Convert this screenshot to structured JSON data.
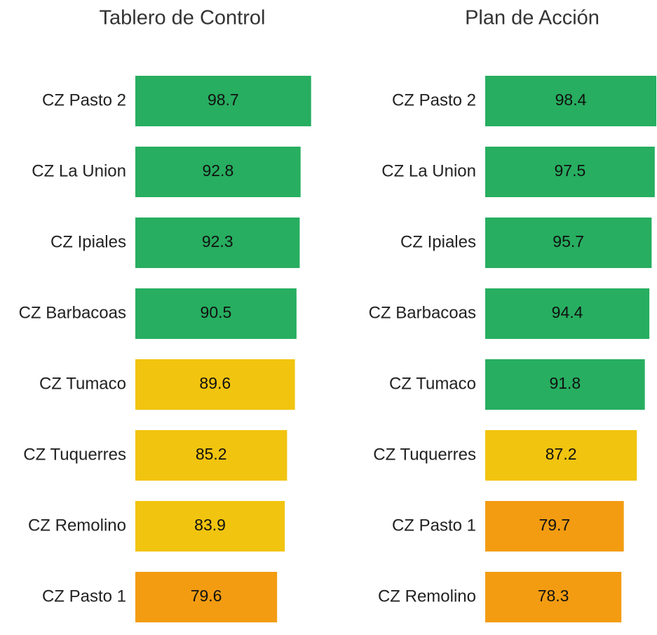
{
  "chart_data": [
    {
      "type": "barh",
      "title": "Tablero de Control",
      "categories": [
        "CZ Pasto 2",
        "CZ La Union",
        "CZ Ipiales",
        "CZ Barbacoas",
        "CZ Tumaco",
        "CZ Tuquerres",
        "CZ Remolino",
        "CZ Pasto 1"
      ],
      "values": [
        98.7,
        92.8,
        92.3,
        90.5,
        89.6,
        85.2,
        83.9,
        79.6
      ],
      "colors": [
        "#27ae60",
        "#27ae60",
        "#27ae60",
        "#27ae60",
        "#f1c40f",
        "#f1c40f",
        "#f1c40f",
        "#f39c12"
      ],
      "xlim": [
        0,
        100
      ]
    },
    {
      "type": "barh",
      "title": "Plan de Acción",
      "categories": [
        "CZ Pasto 2",
        "CZ La Union",
        "CZ Ipiales",
        "CZ Barbacoas",
        "CZ Tumaco",
        "CZ Tuquerres",
        "CZ Pasto 1",
        "CZ Remolino"
      ],
      "values": [
        98.4,
        97.5,
        95.7,
        94.4,
        91.8,
        87.2,
        79.7,
        78.3
      ],
      "colors": [
        "#27ae60",
        "#27ae60",
        "#27ae60",
        "#27ae60",
        "#27ae60",
        "#f1c40f",
        "#f39c12",
        "#f39c12"
      ],
      "xlim": [
        0,
        100
      ]
    }
  ]
}
